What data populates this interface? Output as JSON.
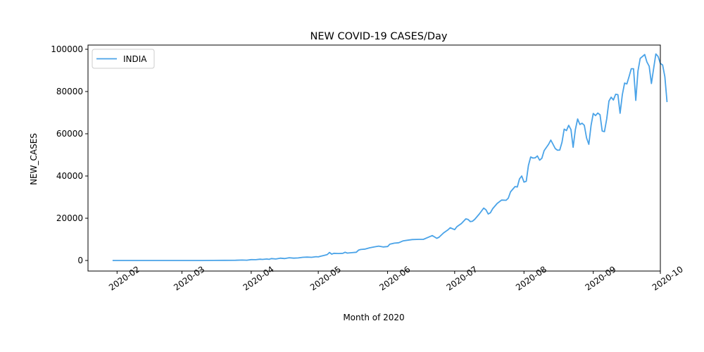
{
  "chart_data": {
    "type": "line",
    "title": "NEW COVID-19 CASES/Day",
    "xlabel": "Month of 2020",
    "ylabel": "NEW_CASES",
    "x_ticks": [
      "2020-02",
      "2020-03",
      "2020-04",
      "2020-05",
      "2020-06",
      "2020-07",
      "2020-08",
      "2020-09",
      "2020-10"
    ],
    "y_ticks": [
      "0",
      "20000",
      "40000",
      "60000",
      "80000",
      "100000"
    ],
    "xlim": [
      "2020-01-19",
      "2020-10-01"
    ],
    "ylim": [
      -5000,
      102000
    ],
    "grid": false,
    "legend_position": "top-left",
    "series": [
      {
        "name": "INDIA",
        "color": "#4aa3e8",
        "points": [
          [
            "2020-01-30",
            0
          ],
          [
            "2020-02-15",
            0
          ],
          [
            "2020-03-01",
            0
          ],
          [
            "2020-03-10",
            0
          ],
          [
            "2020-03-15",
            30
          ],
          [
            "2020-03-20",
            60
          ],
          [
            "2020-03-25",
            100
          ],
          [
            "2020-03-28",
            200
          ],
          [
            "2020-03-30",
            150
          ],
          [
            "2020-04-01",
            400
          ],
          [
            "2020-04-03",
            350
          ],
          [
            "2020-04-05",
            600
          ],
          [
            "2020-04-06",
            500
          ],
          [
            "2020-04-08",
            700
          ],
          [
            "2020-04-09",
            550
          ],
          [
            "2020-04-10",
            900
          ],
          [
            "2020-04-12",
            700
          ],
          [
            "2020-04-14",
            1100
          ],
          [
            "2020-04-16",
            900
          ],
          [
            "2020-04-18",
            1300
          ],
          [
            "2020-04-20",
            1100
          ],
          [
            "2020-04-22",
            1200
          ],
          [
            "2020-04-24",
            1500
          ],
          [
            "2020-04-26",
            1600
          ],
          [
            "2020-04-28",
            1500
          ],
          [
            "2020-04-30",
            1800
          ],
          [
            "2020-05-01",
            1700
          ],
          [
            "2020-05-02",
            2000
          ],
          [
            "2020-05-04",
            2500
          ],
          [
            "2020-05-05",
            2800
          ],
          [
            "2020-05-06",
            3800
          ],
          [
            "2020-05-07",
            3000
          ],
          [
            "2020-05-08",
            3400
          ],
          [
            "2020-05-10",
            3300
          ],
          [
            "2020-05-12",
            3400
          ],
          [
            "2020-05-13",
            3900
          ],
          [
            "2020-05-14",
            3500
          ],
          [
            "2020-05-16",
            3700
          ],
          [
            "2020-05-18",
            3900
          ],
          [
            "2020-05-19",
            4900
          ],
          [
            "2020-05-20",
            5200
          ],
          [
            "2020-05-22",
            5400
          ],
          [
            "2020-05-24",
            6000
          ],
          [
            "2020-05-26",
            6400
          ],
          [
            "2020-05-28",
            6800
          ],
          [
            "2020-05-30",
            6400
          ],
          [
            "2020-06-01",
            6600
          ],
          [
            "2020-06-02",
            7700
          ],
          [
            "2020-06-04",
            8200
          ],
          [
            "2020-06-06",
            8400
          ],
          [
            "2020-06-08",
            9300
          ],
          [
            "2020-06-10",
            9600
          ],
          [
            "2020-06-12",
            9900
          ],
          [
            "2020-06-15",
            10000
          ],
          [
            "2020-06-17",
            10000
          ],
          [
            "2020-06-19",
            10900
          ],
          [
            "2020-06-21",
            11800
          ],
          [
            "2020-06-23",
            10500
          ],
          [
            "2020-06-24",
            11000
          ],
          [
            "2020-06-26",
            13000
          ],
          [
            "2020-06-28",
            14500
          ],
          [
            "2020-06-29",
            15500
          ],
          [
            "2020-07-01",
            14600
          ],
          [
            "2020-07-02",
            16000
          ],
          [
            "2020-07-04",
            17500
          ],
          [
            "2020-07-06",
            19700
          ],
          [
            "2020-07-07",
            19400
          ],
          [
            "2020-07-08",
            18400
          ],
          [
            "2020-07-09",
            18600
          ],
          [
            "2020-07-10",
            19500
          ],
          [
            "2020-07-12",
            22000
          ],
          [
            "2020-07-14",
            24800
          ],
          [
            "2020-07-15",
            24000
          ],
          [
            "2020-07-16",
            22000
          ],
          [
            "2020-07-17",
            22600
          ],
          [
            "2020-07-18",
            24500
          ],
          [
            "2020-07-20",
            27000
          ],
          [
            "2020-07-22",
            28600
          ],
          [
            "2020-07-24",
            28500
          ],
          [
            "2020-07-25",
            29500
          ],
          [
            "2020-07-26",
            32500
          ],
          [
            "2020-07-28",
            35000
          ],
          [
            "2020-07-29",
            34800
          ],
          [
            "2020-07-30",
            38600
          ],
          [
            "2020-07-31",
            40000
          ],
          [
            "2020-08-01",
            37100
          ],
          [
            "2020-08-02",
            37500
          ],
          [
            "2020-08-03",
            45000
          ],
          [
            "2020-08-04",
            49000
          ],
          [
            "2020-08-05",
            48500
          ],
          [
            "2020-08-06",
            48600
          ],
          [
            "2020-08-07",
            49500
          ],
          [
            "2020-08-08",
            47500
          ],
          [
            "2020-08-09",
            48400
          ],
          [
            "2020-08-10",
            52000
          ],
          [
            "2020-08-12",
            55000
          ],
          [
            "2020-08-13",
            57000
          ],
          [
            "2020-08-14",
            55000
          ],
          [
            "2020-08-15",
            53000
          ],
          [
            "2020-08-16",
            52200
          ],
          [
            "2020-08-17",
            52300
          ],
          [
            "2020-08-18",
            56000
          ],
          [
            "2020-08-19",
            62200
          ],
          [
            "2020-08-20",
            61500
          ],
          [
            "2020-08-21",
            64000
          ],
          [
            "2020-08-22",
            62000
          ],
          [
            "2020-08-23",
            53600
          ],
          [
            "2020-08-24",
            62000
          ],
          [
            "2020-08-25",
            67000
          ],
          [
            "2020-08-26",
            64400
          ],
          [
            "2020-08-27",
            65000
          ],
          [
            "2020-08-28",
            64000
          ],
          [
            "2020-08-29",
            58000
          ],
          [
            "2020-08-30",
            55000
          ],
          [
            "2020-08-31",
            64000
          ],
          [
            "2020-09-01",
            69600
          ],
          [
            "2020-09-02",
            68600
          ],
          [
            "2020-09-03",
            69800
          ],
          [
            "2020-09-04",
            69000
          ],
          [
            "2020-09-05",
            61300
          ],
          [
            "2020-09-06",
            61000
          ],
          [
            "2020-09-07",
            67000
          ],
          [
            "2020-09-08",
            75500
          ],
          [
            "2020-09-09",
            77300
          ],
          [
            "2020-09-10",
            76000
          ],
          [
            "2020-09-11",
            78700
          ],
          [
            "2020-09-12",
            78500
          ],
          [
            "2020-09-13",
            69700
          ],
          [
            "2020-09-14",
            78500
          ],
          [
            "2020-09-15",
            84000
          ],
          [
            "2020-09-16",
            83600
          ],
          [
            "2020-09-17",
            87000
          ],
          [
            "2020-09-18",
            90800
          ],
          [
            "2020-09-19",
            90800
          ],
          [
            "2020-09-20",
            75800
          ],
          [
            "2020-09-21",
            89700
          ],
          [
            "2020-09-22",
            95700
          ],
          [
            "2020-09-24",
            97500
          ],
          [
            "2020-09-25",
            94000
          ],
          [
            "2020-09-26",
            92000
          ],
          [
            "2020-09-27",
            83800
          ],
          [
            "2020-09-28",
            91000
          ],
          [
            "2020-09-29",
            97800
          ],
          [
            "2020-09-30",
            96600
          ],
          [
            "2020-10-01",
            93300
          ],
          [
            "2020-10-02",
            92600
          ],
          [
            "2020-10-03",
            87000
          ],
          [
            "2020-10-04",
            75000
          ]
        ]
      }
    ]
  }
}
